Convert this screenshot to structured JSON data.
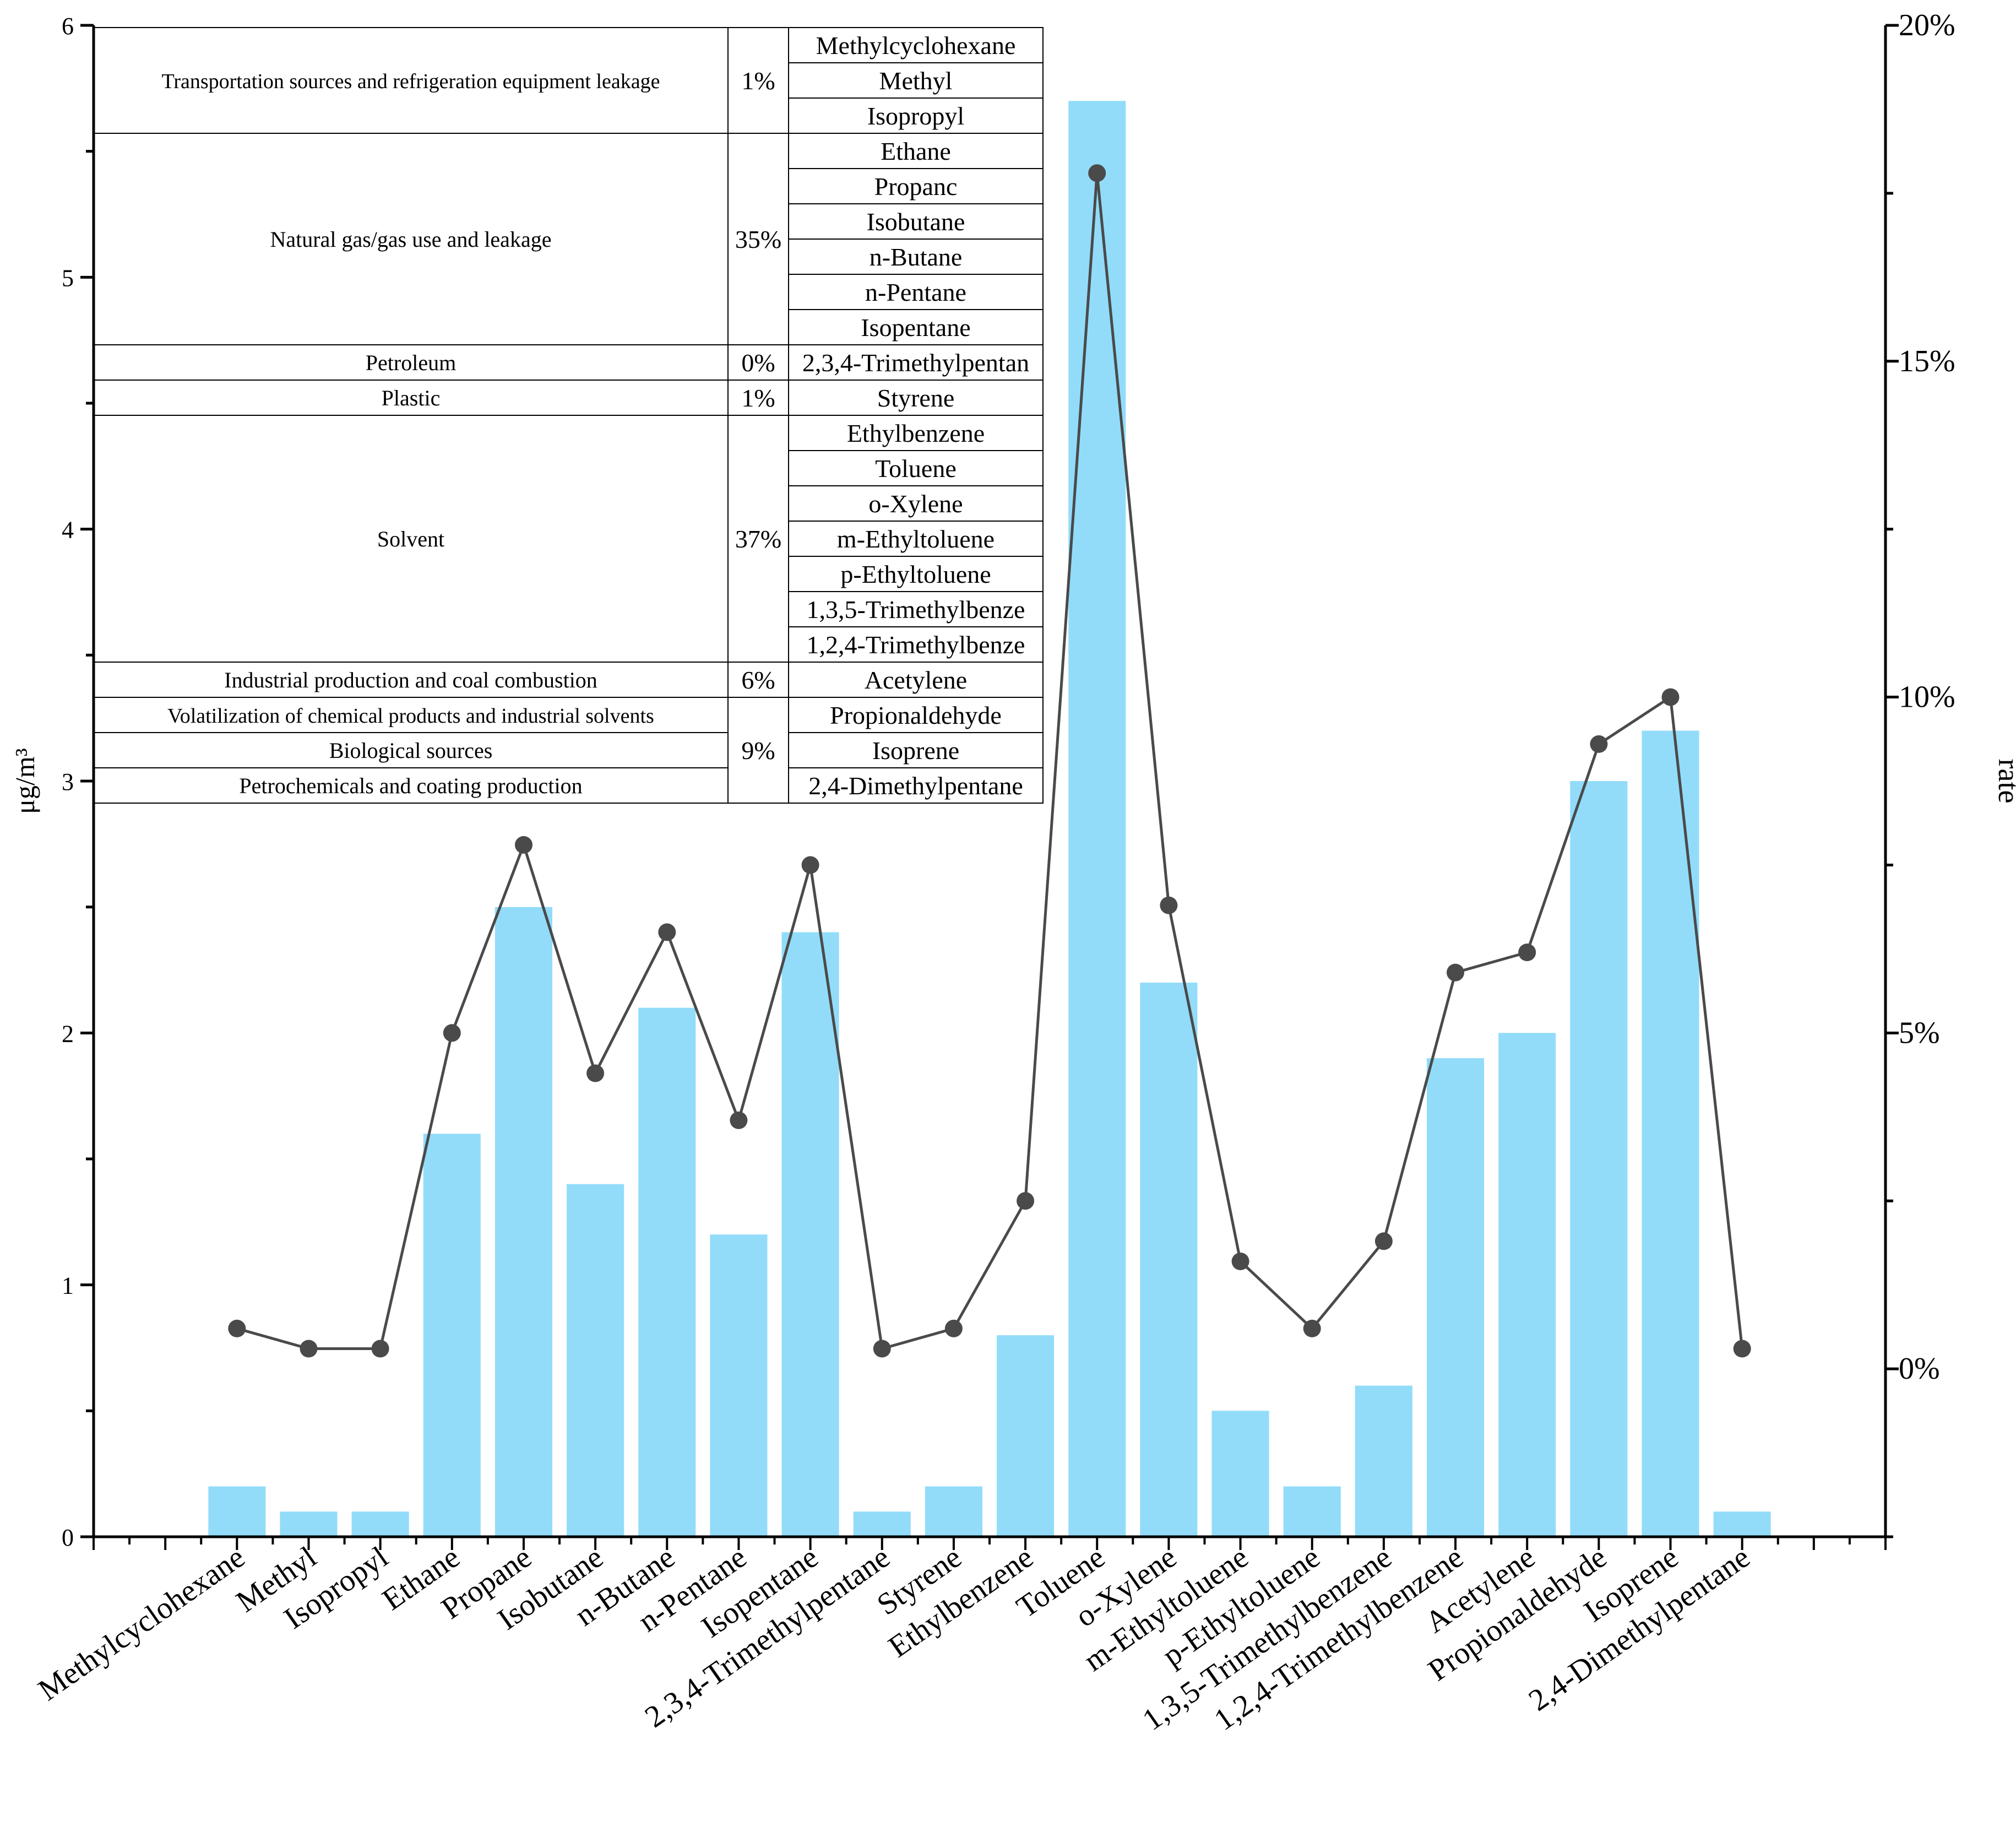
{
  "chart_data": {
    "type": "bar",
    "categories": [
      "Methylcyclohexane",
      "Methyl",
      "Isopropyl",
      "Ethane",
      "Propane",
      "Isobutane",
      "n-Butane",
      "n-Pentane",
      "Isopentane",
      "2,3,4-Trimethylpentane",
      "Styrene",
      "Ethylbenzene",
      "Toluene",
      "o-Xylene",
      "m-Ethyltoluene",
      "p-Ethyltoluene",
      "1,3,5-Trimethylbenzene",
      "1,2,4-Trimethylbenzene",
      "Acetylene",
      "Propionaldehyde",
      "Isoprene",
      "2,4-Dimethylpentane"
    ],
    "series": [
      {
        "type": "bar",
        "axis": "left",
        "color": "#92dcfa",
        "values": [
          0.2,
          0.1,
          0.1,
          1.6,
          2.5,
          1.4,
          2.1,
          1.2,
          2.4,
          0.1,
          0.2,
          0.8,
          5.7,
          2.2,
          0.5,
          0.2,
          0.6,
          1.9,
          2.0,
          3.0,
          3.2,
          0.1
        ]
      },
      {
        "type": "line",
        "axis": "right",
        "color": "#4a4a4a",
        "values": [
          0.6,
          0.3,
          0.3,
          5.0,
          7.8,
          4.4,
          6.5,
          3.7,
          7.5,
          0.3,
          0.6,
          2.5,
          17.8,
          6.9,
          1.6,
          0.6,
          1.9,
          5.9,
          6.2,
          9.3,
          10.0,
          0.3
        ]
      }
    ],
    "ylabel": "μg/m³",
    "ylabel_right": "rate",
    "ylim": [
      0,
      6
    ],
    "ylim_right": [
      -2.5,
      20
    ],
    "yticks": [
      "0",
      "1",
      "2",
      "3",
      "4",
      "5",
      "6"
    ],
    "yticks_right": [
      "0%",
      "5%",
      "10%",
      "15%",
      "20%"
    ],
    "yticks_right_values": [
      0,
      5,
      10,
      15,
      20
    ],
    "grid": false
  },
  "source_table": [
    {
      "source": "Transportation sources and refrigeration equipment leakage",
      "pct": "1%",
      "species": [
        "Methylcyclohexane",
        "Methyl",
        "Isopropyl"
      ]
    },
    {
      "source": "Natural gas/gas use and leakage",
      "pct": "35%",
      "species": [
        "Ethane",
        "Propanc",
        "Isobutane",
        "n-Butane",
        "n-Pentane",
        "Isopentane"
      ]
    },
    {
      "source": "Petroleum",
      "pct": "0%",
      "species": [
        "2,3,4-Trimethylpentan"
      ]
    },
    {
      "source": "Plastic",
      "pct": "1%",
      "species": [
        "Styrene"
      ]
    },
    {
      "source": "Solvent",
      "pct": "37%",
      "species": [
        "Ethylbenzene",
        "Toluene",
        "o-Xylene",
        "m-Ethyltoluene",
        "p-Ethyltoluene",
        "1,3,5-Trimethylbenze",
        "1,2,4-Trimethylbenze"
      ]
    },
    {
      "source": "Industrial production and coal combustion",
      "pct": "6%",
      "species": [
        "Acetylene"
      ]
    },
    {
      "source": "Volatilization of chemical products and industrial solvents",
      "pct": "9%",
      "species": [
        "Propionaldehyde"
      ]
    },
    {
      "source": "Biological sources",
      "pct": "",
      "species": [
        "Isoprene"
      ]
    },
    {
      "source": "Petrochemicals and coating production",
      "pct": "",
      "species": [
        "2,4-Dimethylpentane"
      ]
    }
  ]
}
